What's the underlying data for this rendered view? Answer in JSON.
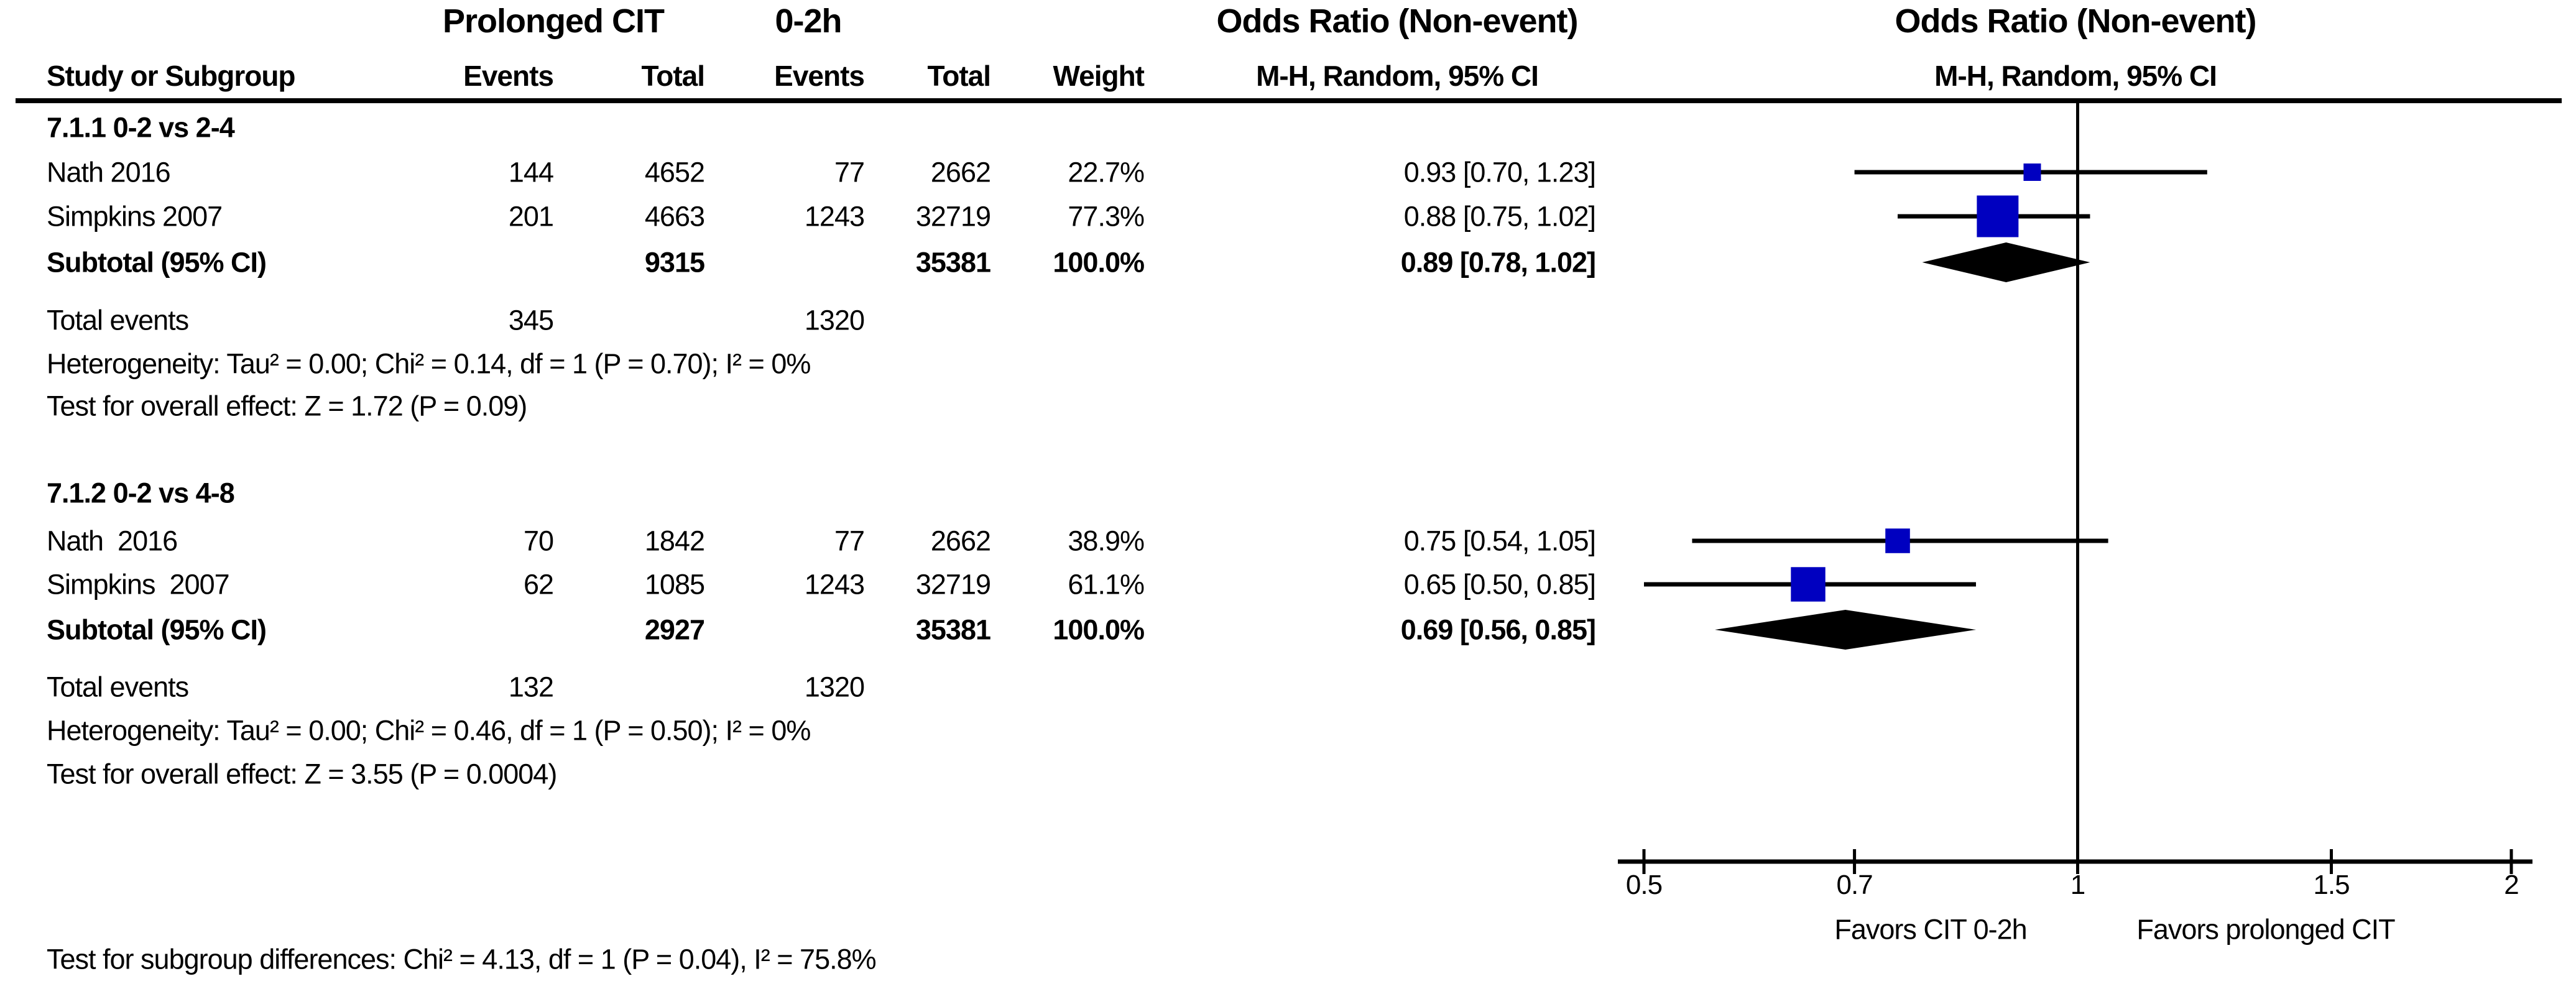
{
  "colors": {
    "marker_blue": "#0000C0",
    "diamond_black": "#000000",
    "line_black": "#000000",
    "background": "#ffffff"
  },
  "group_headers": {
    "treatment": "Prolonged CIT",
    "control": "0-2h",
    "or_text_col": "Odds Ratio (Non-event)",
    "or_plot_col": "Odds Ratio (Non-event)"
  },
  "column_headers": {
    "study": "Study or Subgroup",
    "events": "Events",
    "total": "Total",
    "weight": "Weight",
    "mh": "M-H, Random, 95% CI"
  },
  "sections": [
    {
      "heading": "7.1.1 0-2 vs 2-4",
      "studies": [
        {
          "label": "Nath 2016",
          "e1": "144",
          "t1": "4652",
          "e2": "77",
          "t2": "2662",
          "weight": "22.7%",
          "ci_text": "0.93 [0.70, 1.23]",
          "or": 0.93,
          "lo": 0.7,
          "hi": 1.23,
          "weight_pct": 22.7
        },
        {
          "label": "Simpkins 2007",
          "e1": "201",
          "t1": "4663",
          "e2": "1243",
          "t2": "32719",
          "weight": "77.3%",
          "ci_text": "0.88 [0.75, 1.02]",
          "or": 0.88,
          "lo": 0.75,
          "hi": 1.02,
          "weight_pct": 77.3
        }
      ],
      "subtotal": {
        "label": "Subtotal (95% CI)",
        "t1": "9315",
        "t2": "35381",
        "weight": "100.0%",
        "ci_text": "0.89 [0.78, 1.02]",
        "or": 0.89,
        "lo": 0.78,
        "hi": 1.02
      },
      "total_events": {
        "label": "Total events",
        "e1": "345",
        "e2": "1320"
      },
      "heterogeneity": "Heterogeneity: Tau² = 0.00; Chi² = 0.14, df = 1 (P = 0.70); I² = 0%",
      "overall": "Test for overall effect: Z = 1.72 (P = 0.09)"
    },
    {
      "heading": "7.1.2 0-2 vs 4-8",
      "studies": [
        {
          "label": "Nath  2016",
          "e1": "70",
          "t1": "1842",
          "e2": "77",
          "t2": "2662",
          "weight": "38.9%",
          "ci_text": "0.75 [0.54, 1.05]",
          "or": 0.75,
          "lo": 0.54,
          "hi": 1.05,
          "weight_pct": 38.9
        },
        {
          "label": "Simpkins  2007",
          "e1": "62",
          "t1": "1085",
          "e2": "1243",
          "t2": "32719",
          "weight": "61.1%",
          "ci_text": "0.65 [0.50, 0.85]",
          "or": 0.65,
          "lo": 0.5,
          "hi": 0.85,
          "weight_pct": 61.1
        }
      ],
      "subtotal": {
        "label": "Subtotal (95% CI)",
        "t1": "2927",
        "t2": "35381",
        "weight": "100.0%",
        "ci_text": "0.69 [0.56, 0.85]",
        "or": 0.69,
        "lo": 0.56,
        "hi": 0.85
      },
      "total_events": {
        "label": "Total events",
        "e1": "132",
        "e2": "1320"
      },
      "heterogeneity": "Heterogeneity: Tau² = 0.00; Chi² = 0.46, df = 1 (P = 0.50); I² = 0%",
      "overall": "Test for overall effect: Z = 3.55 (P = 0.0004)"
    }
  ],
  "footer": "Test for subgroup differences: Chi² = 4.13, df = 1 (P = 0.04), I² = 75.8%",
  "axis": {
    "tick_labels": [
      "0.5",
      "0.7",
      "1",
      "1.5",
      "2"
    ],
    "tick_values": [
      0.5,
      0.7,
      1,
      1.5,
      2
    ],
    "favors_left": "Favors CIT 0-2h",
    "favors_right": "Favors prolonged CIT"
  },
  "chart_data": {
    "type": "forest",
    "effect_measure": "Odds Ratio (Non-event)",
    "model": "M-H, Random, 95% CI",
    "scale": "log",
    "xlim": [
      0.5,
      2
    ],
    "x_ticks": [
      0.5,
      0.7,
      1,
      1.5,
      2
    ],
    "null_value": 1,
    "favors_left_label": "Favors CIT 0-2h",
    "favors_right_label": "Favors prolonged CIT",
    "subgroups": [
      {
        "name": "7.1.1 0-2 vs 2-4",
        "studies": [
          {
            "study": "Nath 2016",
            "events_treatment": 144,
            "total_treatment": 4652,
            "events_control": 77,
            "total_control": 2662,
            "weight_pct": 22.7,
            "or": 0.93,
            "ci": [
              0.7,
              1.23
            ]
          },
          {
            "study": "Simpkins 2007",
            "events_treatment": 201,
            "total_treatment": 4663,
            "events_control": 1243,
            "total_control": 32719,
            "weight_pct": 77.3,
            "or": 0.88,
            "ci": [
              0.75,
              1.02
            ]
          }
        ],
        "subtotal": {
          "total_treatment": 9315,
          "total_control": 35381,
          "weight_pct": 100.0,
          "or": 0.89,
          "ci": [
            0.78,
            1.02
          ]
        },
        "total_events_treatment": 345,
        "total_events_control": 1320,
        "heterogeneity": {
          "tau2": 0.0,
          "chi2": 0.14,
          "df": 1,
          "p": 0.7,
          "i2_pct": 0
        },
        "overall_effect": {
          "z": 1.72,
          "p": 0.09
        }
      },
      {
        "name": "7.1.2 0-2 vs 4-8",
        "studies": [
          {
            "study": "Nath 2016",
            "events_treatment": 70,
            "total_treatment": 1842,
            "events_control": 77,
            "total_control": 2662,
            "weight_pct": 38.9,
            "or": 0.75,
            "ci": [
              0.54,
              1.05
            ]
          },
          {
            "study": "Simpkins 2007",
            "events_treatment": 62,
            "total_treatment": 1085,
            "events_control": 1243,
            "total_control": 32719,
            "weight_pct": 61.1,
            "or": 0.65,
            "ci": [
              0.5,
              0.85
            ]
          }
        ],
        "subtotal": {
          "total_treatment": 2927,
          "total_control": 35381,
          "weight_pct": 100.0,
          "or": 0.69,
          "ci": [
            0.56,
            0.85
          ]
        },
        "total_events_treatment": 132,
        "total_events_control": 1320,
        "heterogeneity": {
          "tau2": 0.0,
          "chi2": 0.46,
          "df": 1,
          "p": 0.5,
          "i2_pct": 0
        },
        "overall_effect": {
          "z": 3.55,
          "p": 0.0004
        }
      }
    ],
    "subgroup_difference_test": {
      "chi2": 4.13,
      "df": 1,
      "p": 0.04,
      "i2_pct": 75.8
    }
  }
}
